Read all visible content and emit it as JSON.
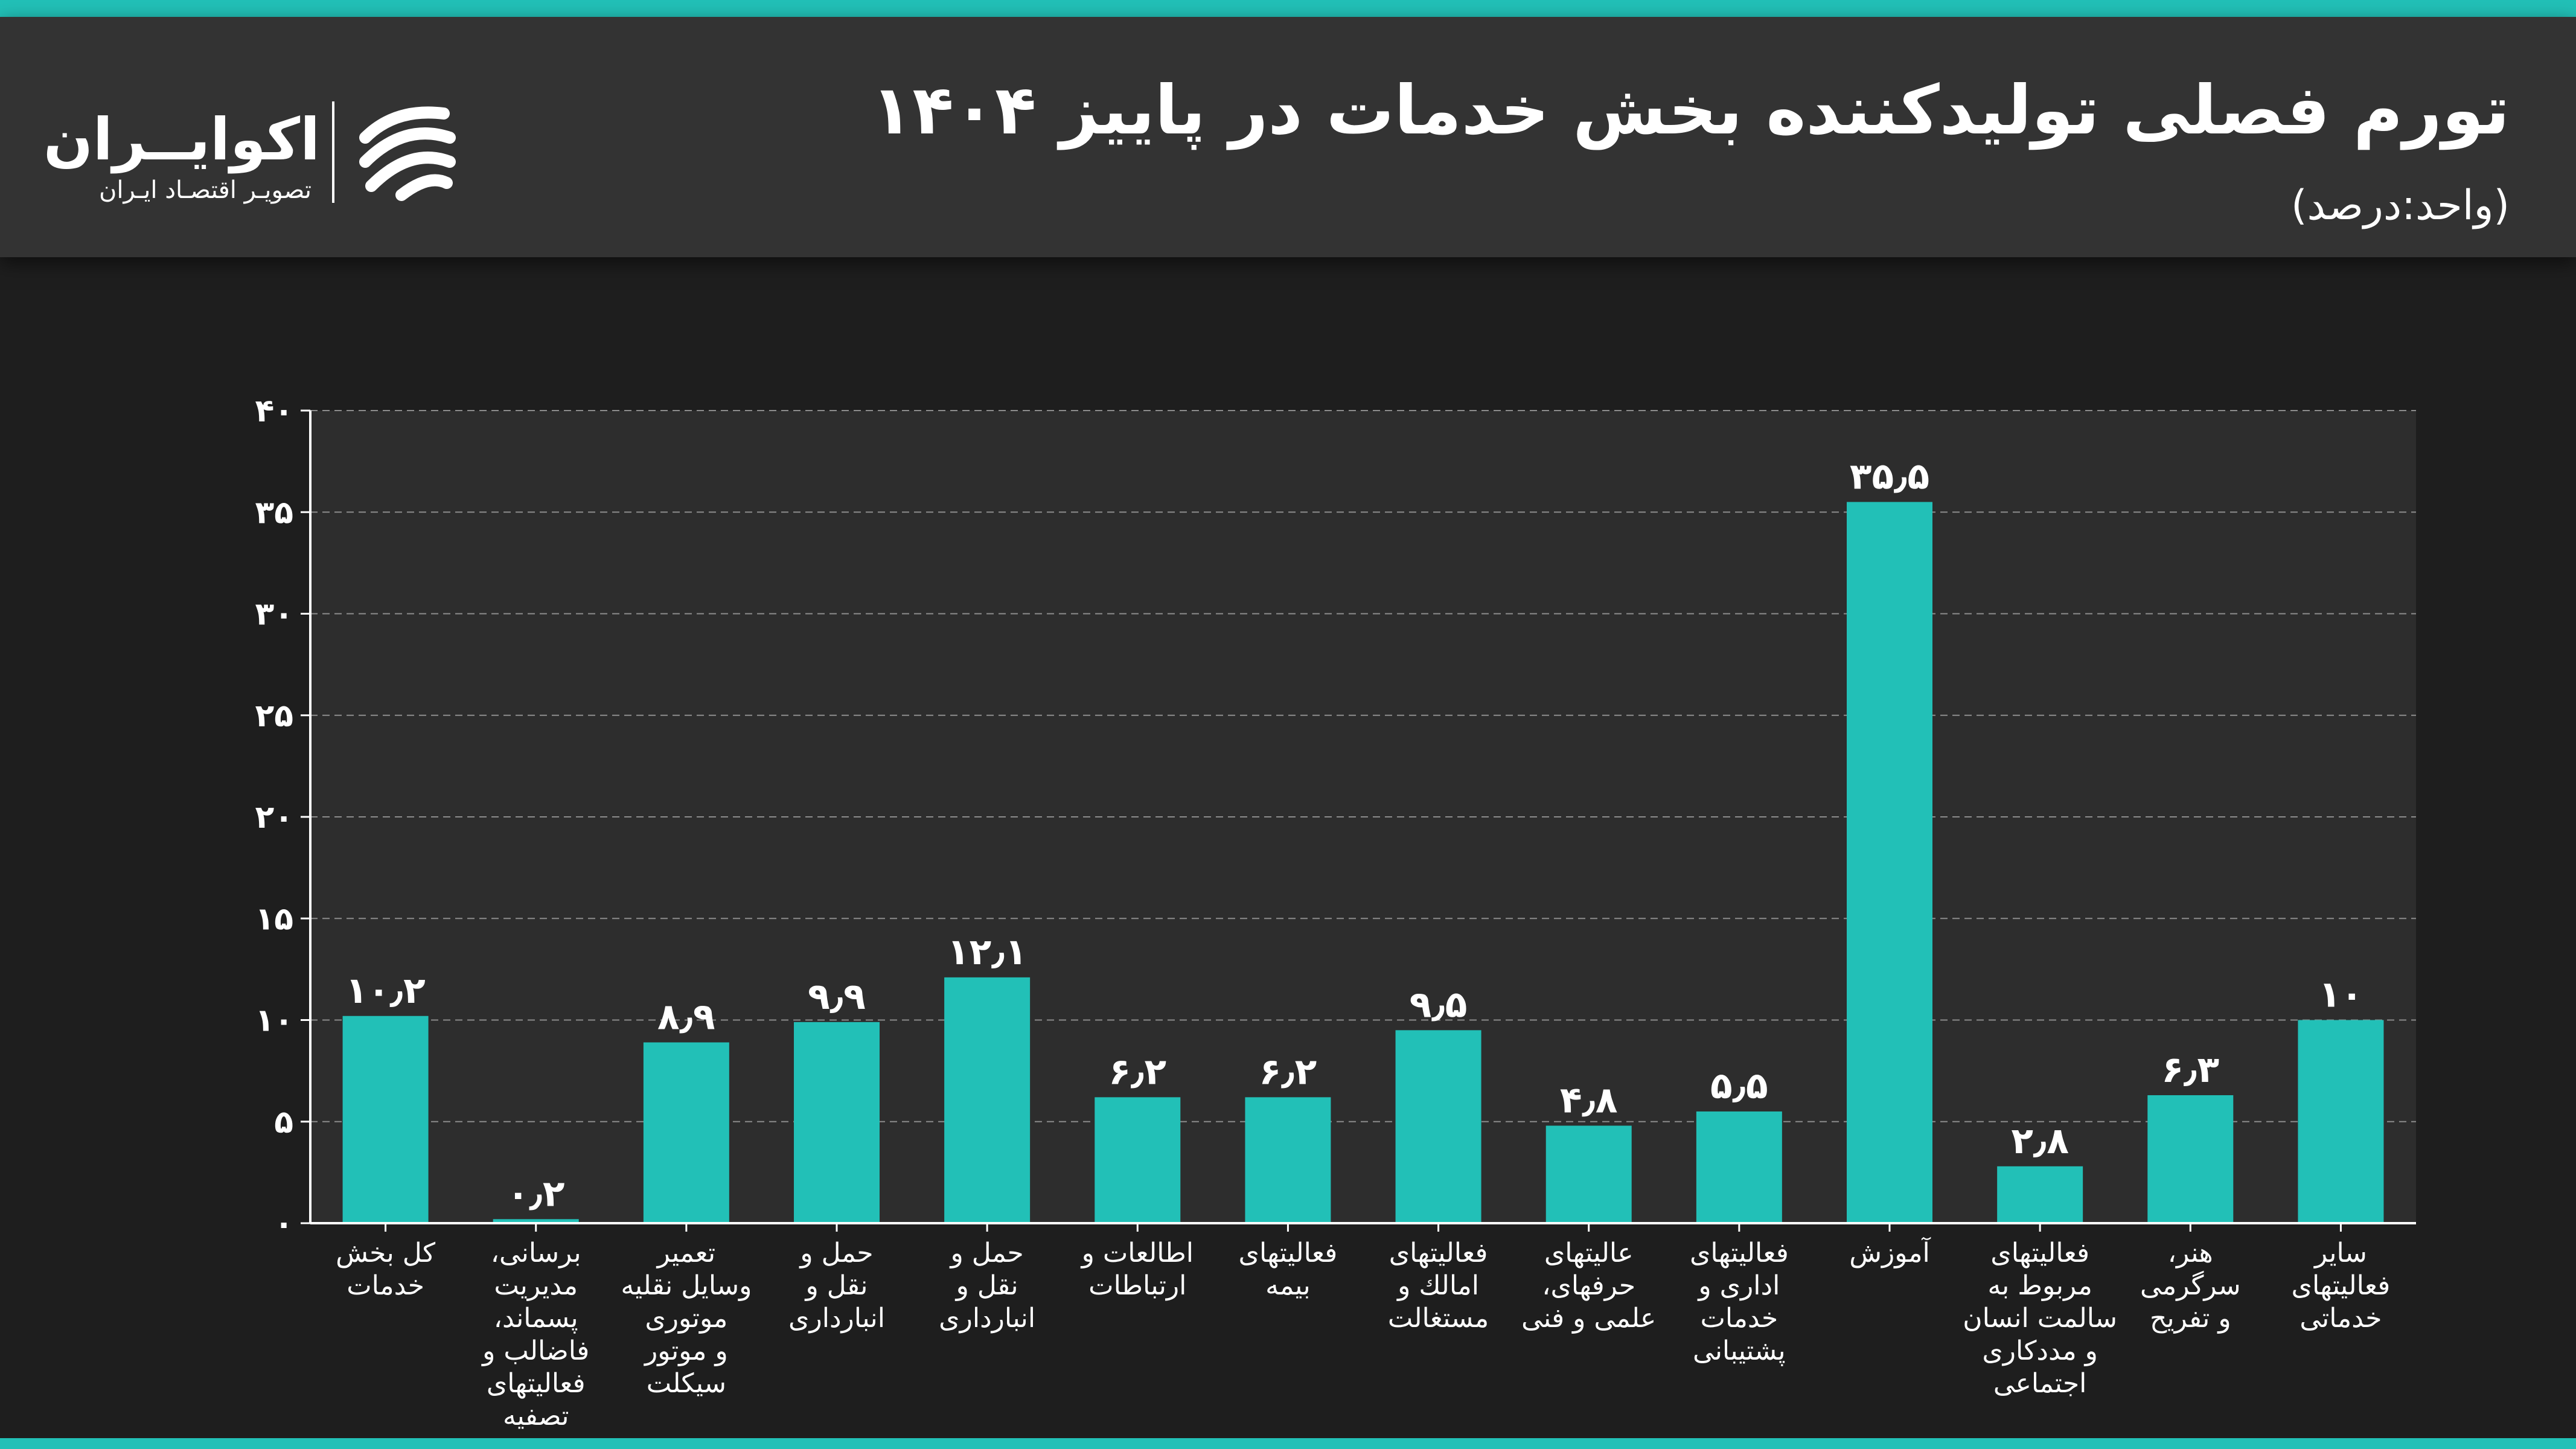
{
  "header": {
    "title": "تورم فصلی تولیدکننده بخش خدمات در پاییز ۱۴۰۴",
    "subtitle": "(واحد:درصد)"
  },
  "brand": {
    "name": "اکوایــران",
    "tagline": "تصویـر اقتصـاد ایـران"
  },
  "colors": {
    "bar": "#22c0b7",
    "stripe": "#22c0b7",
    "header_bg": "#333333",
    "page_bg": "#1e1e1e",
    "plot_bg": "#2d2d2d",
    "grid": "#8c8c8c"
  },
  "chart_data": {
    "type": "bar",
    "title": "تورم فصلی تولیدکننده بخش خدمات در پاییز ۱۴۰۴",
    "ylabel": "(واحد:درصد)",
    "ylim": [
      0,
      40
    ],
    "yticks": [
      0,
      5,
      10,
      15,
      20,
      25,
      30,
      35,
      40
    ],
    "ytick_labels": [
      "۰",
      "۵",
      "۱۰",
      "۱۵",
      "۲۰",
      "۲۵",
      "۳۰",
      "۳۵",
      "۴۰"
    ],
    "grid": true,
    "categories": [
      [
        "کل بخش",
        "خدمات"
      ],
      [
        "برسانی،",
        "مدیریت",
        "پسماند،",
        "فاضالب و",
        "فعالیتهای",
        "تصفیه"
      ],
      [
        "تعمیر",
        "وسایل نقلیه",
        "موتوری",
        "و موتور",
        "سیکلت"
      ],
      [
        "حمل و",
        "نقل و",
        "انبارداری"
      ],
      [
        "حمل و",
        "نقل و",
        "انبارداری"
      ],
      [
        "اطالعات و",
        "ارتباطات"
      ],
      [
        "فعالیتهای",
        "بیمه"
      ],
      [
        "فعالیتهای",
        "امالك و",
        "مستغالت"
      ],
      [
        "عالیتهای",
        "حرفهای،",
        "علمی و فنی"
      ],
      [
        "فعالیتهای",
        "اداری و",
        "خدمات",
        "پشتیبانی"
      ],
      [
        "آموزش"
      ],
      [
        "فعالیتهای",
        "مربوط به",
        "سالمت انسان",
        "و مددکاری",
        "اجتماعی"
      ],
      [
        "هنر،",
        "سرگرمی",
        "و تفریح"
      ],
      [
        "سایر",
        "فعالیتهای",
        "خدماتی"
      ]
    ],
    "values": [
      10.2,
      0.2,
      8.9,
      9.9,
      12.1,
      6.2,
      6.2,
      9.5,
      4.8,
      5.5,
      35.5,
      2.8,
      6.3,
      10
    ],
    "value_labels": [
      "۱۰٫۲",
      "۰٫۲",
      "۸٫۹",
      "۹٫۹",
      "۱۲٫۱",
      "۶٫۲",
      "۶٫۲",
      "۹٫۵",
      "۴٫۸",
      "۵٫۵",
      "۳۵٫۵",
      "۲٫۸",
      "۶٫۳",
      "۱۰"
    ]
  }
}
